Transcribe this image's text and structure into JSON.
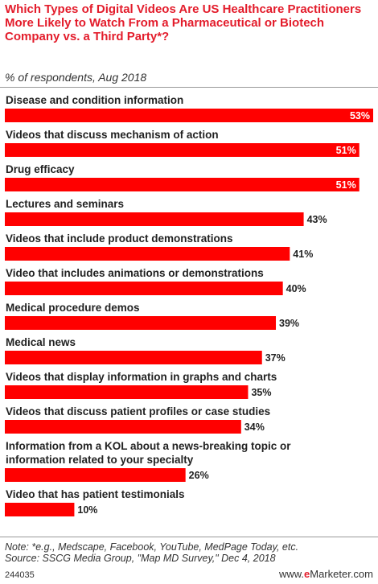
{
  "header": {
    "title": "Which Types of Digital Videos Are US Healthcare Practitioners More Likely to Watch From a Pharmaceutical or Biotech Company vs. a Third Party*?",
    "subtitle": "% of respondents, Aug 2018"
  },
  "chart_data": {
    "type": "bar",
    "orientation": "horizontal",
    "title": "Which Types of Digital Videos Are US Healthcare Practitioners More Likely to Watch From a Pharmaceutical or Biotech Company vs. a Third Party*?",
    "subtitle": "% of respondents, Aug 2018",
    "categories": [
      "Disease and condition information",
      "Videos that discuss mechanism of action",
      "Drug efficacy",
      "Lectures and seminars",
      "Videos that include product demonstrations",
      "Video that includes animations or demonstrations",
      "Medical procedure demos",
      "Medical news",
      "Videos that display information in graphs and charts",
      "Videos that discuss patient profiles or case studies",
      "Information from a KOL about a news-breaking topic or information related to your specialty",
      "Video that has patient testimonials"
    ],
    "category_lines": [
      [
        "Disease and condition information"
      ],
      [
        "Videos that discuss mechanism of action"
      ],
      [
        "Drug efficacy"
      ],
      [
        "Lectures and seminars"
      ],
      [
        "Videos that include product demonstrations"
      ],
      [
        "Video that includes animations or demonstrations"
      ],
      [
        "Medical procedure demos"
      ],
      [
        "Medical news"
      ],
      [
        "Videos that display information in graphs and charts"
      ],
      [
        "Videos that discuss patient profiles or case studies"
      ],
      [
        "Information from a KOL about a news-breaking topic or",
        "information related to your specialty"
      ],
      [
        "Video that has patient testimonials"
      ]
    ],
    "values": [
      53,
      51,
      51,
      43,
      41,
      40,
      39,
      37,
      35,
      34,
      26,
      10
    ],
    "labels": [
      "53%",
      "51%",
      "51%",
      "43%",
      "41%",
      "40%",
      "39%",
      "37%",
      "35%",
      "34%",
      "26%",
      "10%"
    ],
    "unit": "%",
    "xlim": [
      0,
      53
    ],
    "bar_color": "#ff0000",
    "grid": false,
    "legend": "none"
  },
  "footer": {
    "note": "Note: *e.g., Medscape, Facebook, YouTube, MedPage Today, etc.",
    "source": "Source: SSCG Media Group, \"Map MD Survey,\" Dec 4, 2018",
    "id": "244035",
    "brand_prefix": "www.",
    "brand_e": "e",
    "brand_suffix": "Marketer.com"
  },
  "colors": {
    "title": "#e31c2b",
    "bar": "#ff0000",
    "text": "#222222"
  }
}
